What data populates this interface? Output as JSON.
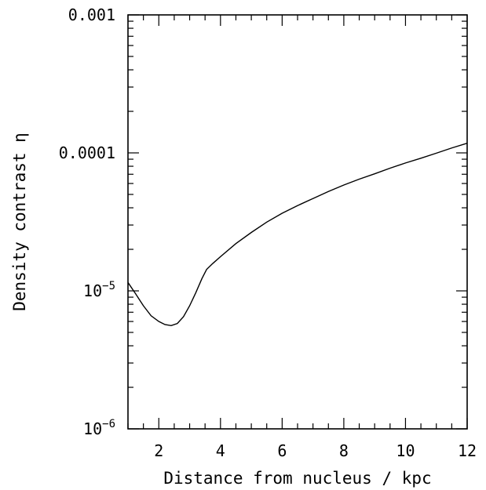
{
  "chart_data": {
    "type": "line",
    "xlabel": "Distance from nucleus / kpc",
    "ylabel": "Density contrast η",
    "xlim": [
      1,
      12
    ],
    "ylim": [
      1e-06,
      0.001
    ],
    "yscale": "log",
    "grid": false,
    "x_ticks": [
      {
        "value": 2,
        "label": "2"
      },
      {
        "value": 4,
        "label": "4"
      },
      {
        "value": 6,
        "label": "6"
      },
      {
        "value": 8,
        "label": "8"
      },
      {
        "value": 10,
        "label": "10"
      },
      {
        "value": 12,
        "label": "12"
      }
    ],
    "y_ticks": [
      {
        "value": 0.001,
        "label": "0.001",
        "base": "",
        "exp": ""
      },
      {
        "value": 0.0001,
        "label": "0.0001",
        "base": "",
        "exp": ""
      },
      {
        "value": 1e-05,
        "label": "",
        "base": "10",
        "exp": "−5"
      },
      {
        "value": 1e-06,
        "label": "",
        "base": "10",
        "exp": "−6"
      }
    ],
    "series": [
      {
        "color": "#000000",
        "x": [
          1.0,
          1.25,
          1.5,
          1.75,
          2.0,
          2.2,
          2.4,
          2.6,
          2.8,
          3.0,
          3.2,
          3.4,
          3.55,
          3.75,
          4.0,
          4.5,
          5.0,
          5.5,
          6.0,
          6.5,
          7.0,
          7.5,
          8.0,
          8.5,
          9.0,
          9.5,
          10.0,
          10.5,
          11.0,
          11.5,
          12.0
        ],
        "y": [
          1.15e-05,
          9.5e-06,
          7.8e-06,
          6.6e-06,
          6e-06,
          5.7e-06,
          5.6e-06,
          5.8e-06,
          6.5e-06,
          7.8e-06,
          9.7e-06,
          1.23e-05,
          1.43e-05,
          1.58e-05,
          1.77e-05,
          2.2e-05,
          2.65e-05,
          3.15e-05,
          3.65e-05,
          4.15e-05,
          4.67e-05,
          5.25e-05,
          5.85e-05,
          6.45e-05,
          7.05e-05,
          7.75e-05,
          8.45e-05,
          9.15e-05,
          9.95e-05,
          0.0001085,
          0.0001175
        ]
      }
    ]
  }
}
